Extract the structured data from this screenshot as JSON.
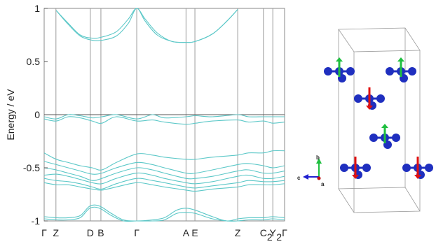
{
  "chart_data": {
    "type": "line",
    "title": "",
    "ylabel": "Energy / eV",
    "xlabel": "",
    "ylim": [
      -1,
      1
    ],
    "yticks": [
      -1,
      -0.5,
      0,
      0.5,
      1
    ],
    "ytick_labels": [
      "-1",
      "-0.5",
      "0",
      "0.5",
      "1"
    ],
    "grid": false,
    "fermi_level": 0,
    "line_color": "#5cc8c8",
    "k_points": [
      {
        "label": "Γ",
        "x": 0.0
      },
      {
        "label": "Z",
        "x": 0.049
      },
      {
        "label": "D",
        "x": 0.192
      },
      {
        "label": "B",
        "x": 0.236
      },
      {
        "label": "Γ",
        "x": 0.385
      },
      {
        "label": "A",
        "x": 0.59
      },
      {
        "label": "E",
        "x": 0.627
      },
      {
        "label": "Z",
        "x": 0.805
      },
      {
        "label": "C",
        "x": 0.912
      },
      {
        "label": "2",
        "x": null,
        "sub": true
      },
      {
        "label": "Y",
        "x": 0.951
      },
      {
        "label": "2",
        "x": null,
        "sub": true
      },
      {
        "label": "Γ",
        "x": 1.0
      }
    ],
    "series": [
      {
        "x": [
          0.05,
          0.1,
          0.15,
          0.2,
          0.24,
          0.3,
          0.35,
          0.385,
          0.42,
          0.47,
          0.53,
          0.59,
          0.63,
          0.7,
          0.76,
          0.805
        ],
        "values": [
          0.98,
          0.86,
          0.75,
          0.72,
          0.73,
          0.78,
          0.9,
          1.0,
          0.9,
          0.77,
          0.69,
          0.68,
          0.69,
          0.76,
          0.88,
          0.99
        ]
      },
      {
        "x": [
          0.05,
          0.1,
          0.15,
          0.2,
          0.24,
          0.3,
          0.35,
          0.385,
          0.42,
          0.47,
          0.53,
          0.59,
          0.63,
          0.7,
          0.76,
          0.805
        ],
        "values": [
          0.98,
          0.85,
          0.74,
          0.7,
          0.7,
          0.74,
          0.86,
          1.0,
          0.88,
          0.75,
          0.69,
          0.68,
          0.69,
          0.76,
          0.88,
          0.99
        ]
      },
      {
        "x": [
          0.0,
          0.05,
          0.1,
          0.15,
          0.2,
          0.24,
          0.3,
          0.385,
          0.45,
          0.5,
          0.59,
          0.63,
          0.7,
          0.805,
          0.85,
          0.912,
          0.951,
          1.0
        ],
        "values": [
          -0.02,
          -0.04,
          0.0,
          -0.01,
          -0.03,
          -0.02,
          0.0,
          -0.04,
          0.0,
          -0.03,
          -0.02,
          -0.01,
          -0.02,
          0.0,
          -0.02,
          -0.02,
          -0.02,
          -0.02
        ]
      },
      {
        "x": [
          0.0,
          0.05,
          0.1,
          0.15,
          0.2,
          0.24,
          0.3,
          0.385,
          0.45,
          0.5,
          0.59,
          0.63,
          0.7,
          0.805,
          0.85,
          0.912,
          0.951,
          1.0
        ],
        "values": [
          -0.04,
          -0.06,
          -0.02,
          -0.03,
          -0.06,
          -0.08,
          -0.02,
          -0.06,
          -0.05,
          -0.07,
          -0.09,
          -0.08,
          -0.06,
          -0.05,
          -0.07,
          -0.06,
          -0.08,
          -0.07
        ]
      },
      {
        "x": [
          0.0,
          0.05,
          0.1,
          0.15,
          0.2,
          0.24,
          0.3,
          0.385,
          0.45,
          0.5,
          0.59,
          0.63,
          0.7,
          0.805,
          0.85,
          0.912,
          0.951,
          1.0
        ],
        "values": [
          -0.36,
          -0.42,
          -0.45,
          -0.48,
          -0.5,
          -0.52,
          -0.45,
          -0.37,
          -0.38,
          -0.4,
          -0.42,
          -0.42,
          -0.4,
          -0.38,
          -0.36,
          -0.36,
          -0.34,
          -0.34
        ]
      },
      {
        "x": [
          0.0,
          0.05,
          0.1,
          0.15,
          0.2,
          0.24,
          0.3,
          0.385,
          0.45,
          0.5,
          0.59,
          0.63,
          0.7,
          0.805,
          0.85,
          0.912,
          0.951,
          1.0
        ],
        "values": [
          -0.44,
          -0.47,
          -0.5,
          -0.53,
          -0.56,
          -0.55,
          -0.5,
          -0.45,
          -0.47,
          -0.5,
          -0.55,
          -0.55,
          -0.52,
          -0.47,
          -0.46,
          -0.48,
          -0.5,
          -0.48
        ]
      },
      {
        "x": [
          0.0,
          0.05,
          0.1,
          0.15,
          0.2,
          0.24,
          0.3,
          0.385,
          0.45,
          0.5,
          0.59,
          0.63,
          0.7,
          0.805,
          0.85,
          0.912,
          0.951,
          1.0
        ],
        "values": [
          -0.5,
          -0.52,
          -0.55,
          -0.58,
          -0.62,
          -0.6,
          -0.55,
          -0.5,
          -0.52,
          -0.55,
          -0.6,
          -0.6,
          -0.58,
          -0.53,
          -0.52,
          -0.55,
          -0.55,
          -0.53
        ]
      },
      {
        "x": [
          0.0,
          0.05,
          0.1,
          0.15,
          0.2,
          0.24,
          0.3,
          0.385,
          0.45,
          0.5,
          0.59,
          0.63,
          0.7,
          0.805,
          0.85,
          0.912,
          0.951,
          1.0
        ],
        "values": [
          -0.57,
          -0.56,
          -0.58,
          -0.61,
          -0.64,
          -0.65,
          -0.6,
          -0.55,
          -0.57,
          -0.6,
          -0.64,
          -0.65,
          -0.63,
          -0.58,
          -0.57,
          -0.6,
          -0.6,
          -0.58
        ]
      },
      {
        "x": [
          0.0,
          0.05,
          0.1,
          0.15,
          0.2,
          0.24,
          0.3,
          0.385,
          0.45,
          0.5,
          0.59,
          0.63,
          0.7,
          0.805,
          0.85,
          0.912,
          0.951,
          1.0
        ],
        "values": [
          -0.6,
          -0.62,
          -0.63,
          -0.65,
          -0.68,
          -0.7,
          -0.65,
          -0.6,
          -0.62,
          -0.64,
          -0.68,
          -0.69,
          -0.67,
          -0.64,
          -0.62,
          -0.63,
          -0.63,
          -0.62
        ]
      },
      {
        "x": [
          0.0,
          0.05,
          0.1,
          0.15,
          0.2,
          0.24,
          0.3,
          0.385,
          0.45,
          0.5,
          0.59,
          0.63,
          0.7,
          0.805,
          0.85,
          0.912,
          0.951,
          1.0
        ],
        "values": [
          -0.64,
          -0.66,
          -0.66,
          -0.68,
          -0.7,
          -0.71,
          -0.68,
          -0.64,
          -0.66,
          -0.68,
          -0.71,
          -0.72,
          -0.7,
          -0.68,
          -0.66,
          -0.66,
          -0.66,
          -0.65
        ]
      },
      {
        "x": [
          0.0,
          0.05,
          0.1,
          0.15,
          0.19,
          0.23,
          0.28,
          0.33,
          0.385,
          0.45,
          0.5,
          0.55,
          0.59,
          0.63,
          0.7,
          0.76,
          0.805,
          0.85,
          0.912,
          0.951,
          1.0
        ],
        "values": [
          -0.96,
          -0.97,
          -0.97,
          -0.95,
          -0.86,
          -0.86,
          -0.93,
          -0.99,
          -1.0,
          -0.99,
          -0.97,
          -0.9,
          -0.88,
          -0.9,
          -0.96,
          -1.0,
          -0.98,
          -0.97,
          -0.97,
          -0.96,
          -0.97
        ]
      },
      {
        "x": [
          0.0,
          0.05,
          0.1,
          0.15,
          0.19,
          0.23,
          0.28,
          0.33,
          0.385,
          0.45,
          0.5,
          0.55,
          0.59,
          0.63,
          0.7,
          0.76,
          0.805,
          0.85,
          0.912,
          0.951,
          1.0
        ],
        "values": [
          -0.98,
          -0.99,
          -0.99,
          -0.97,
          -0.88,
          -0.88,
          -0.95,
          -1.0,
          -1.0,
          -1.0,
          -0.99,
          -0.93,
          -0.92,
          -0.93,
          -0.98,
          -1.0,
          -1.0,
          -0.99,
          -0.99,
          -0.98,
          -0.99
        ]
      }
    ]
  },
  "inset": {
    "axis_labels": {
      "b": "b",
      "c": "c",
      "a": "a"
    },
    "colors": {
      "atom": "#1f2fbf",
      "bond": "#1f2fbf",
      "spin_up": "#1fbf3f",
      "spin_down": "#e01010",
      "cell": "#9a9a9a",
      "axis_b": "#1fbf3f",
      "axis_c": "#2020d0",
      "axis_a": "#c01010"
    },
    "spins": [
      "up",
      "up",
      "down",
      "up",
      "down",
      "down"
    ]
  }
}
